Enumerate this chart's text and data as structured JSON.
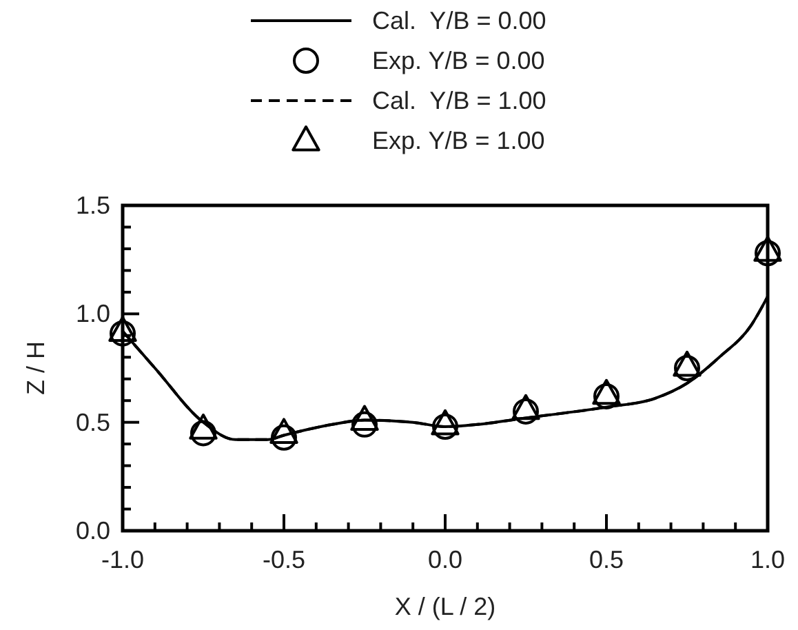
{
  "chart_data": {
    "type": "line",
    "xlabel": "X / (L / 2)",
    "ylabel": "Z / H",
    "legend": "top",
    "grid": false,
    "xlim": [
      -1,
      1
    ],
    "ylim": [
      0,
      1.5
    ],
    "xticks": [
      {
        "value": -1,
        "label": "-1.0"
      },
      {
        "value": -0.9,
        "label": null
      },
      {
        "value": -0.8,
        "label": null
      },
      {
        "value": -0.7,
        "label": null
      },
      {
        "value": -0.6,
        "label": null
      },
      {
        "value": -0.5,
        "label": "-0.5"
      },
      {
        "value": -0.4,
        "label": null
      },
      {
        "value": -0.3,
        "label": null
      },
      {
        "value": -0.2,
        "label": null
      },
      {
        "value": -0.1,
        "label": null
      },
      {
        "value": 0,
        "label": "0.0"
      },
      {
        "value": 0.1,
        "label": null
      },
      {
        "value": 0.2,
        "label": null
      },
      {
        "value": 0.3,
        "label": null
      },
      {
        "value": 0.4,
        "label": null
      },
      {
        "value": 0.5,
        "label": "0.5"
      },
      {
        "value": 0.6,
        "label": null
      },
      {
        "value": 0.7,
        "label": null
      },
      {
        "value": 0.8,
        "label": null
      },
      {
        "value": 0.9,
        "label": null
      },
      {
        "value": 1,
        "label": "1.0"
      }
    ],
    "yticks": [
      {
        "value": 0,
        "label": "0.0"
      },
      {
        "value": 0.1,
        "label": null
      },
      {
        "value": 0.2,
        "label": null
      },
      {
        "value": 0.3,
        "label": null
      },
      {
        "value": 0.4,
        "label": null
      },
      {
        "value": 0.5,
        "label": "0.5"
      },
      {
        "value": 0.6,
        "label": null
      },
      {
        "value": 0.7,
        "label": null
      },
      {
        "value": 0.8,
        "label": null
      },
      {
        "value": 0.9,
        "label": null
      },
      {
        "value": 1,
        "label": "1.0"
      },
      {
        "value": 1.1,
        "label": null
      },
      {
        "value": 1.2,
        "label": null
      },
      {
        "value": 1.3,
        "label": null
      },
      {
        "value": 1.4,
        "label": null
      },
      {
        "value": 1.5,
        "label": "1.5"
      }
    ],
    "series": [
      {
        "name": "Cal.  Y/B = 0.00",
        "line_style": "solid",
        "marker": "none",
        "color": "#000000",
        "x": [
          -1,
          -0.9,
          -0.75,
          -0.65,
          -0.55,
          -0.5,
          -0.35,
          -0.25,
          -0.1,
          0,
          0.1,
          0.25,
          0.5,
          0.65,
          0.75,
          0.85,
          0.95,
          1
        ],
        "values": [
          0.92,
          0.75,
          0.5,
          0.42,
          0.42,
          0.44,
          0.49,
          0.51,
          0.5,
          0.48,
          0.49,
          0.52,
          0.57,
          0.61,
          0.68,
          0.8,
          0.95,
          1.08
        ]
      },
      {
        "name": "Exp. Y/B = 0.00",
        "type": "scatter",
        "marker": "circle",
        "color": "#000000",
        "x": [
          -1,
          -0.75,
          -0.5,
          -0.25,
          0,
          0.25,
          0.5,
          0.75,
          1
        ],
        "values": [
          0.91,
          0.45,
          0.43,
          0.49,
          0.48,
          0.55,
          0.62,
          0.75,
          1.28
        ]
      },
      {
        "name": "Cal.  Y/B = 1.00",
        "line_style": "dashed",
        "marker": "none",
        "color": "#000000",
        "x": [
          -1,
          -0.9,
          -0.75,
          -0.65,
          -0.55,
          -0.5,
          -0.35,
          -0.25,
          -0.1,
          0,
          0.1,
          0.25,
          0.5,
          0.65,
          0.75,
          0.85,
          0.95,
          1
        ],
        "values": [
          0.92,
          0.75,
          0.5,
          0.42,
          0.42,
          0.44,
          0.49,
          0.51,
          0.5,
          0.48,
          0.49,
          0.52,
          0.57,
          0.61,
          0.68,
          0.8,
          0.95,
          1.08
        ]
      },
      {
        "name": "Exp. Y/B = 1.00",
        "type": "scatter",
        "marker": "triangle",
        "color": "#000000",
        "x": [
          -1,
          -0.75,
          -0.5,
          -0.25,
          0,
          0.25,
          0.5,
          0.75,
          1
        ],
        "values": [
          0.92,
          0.47,
          0.45,
          0.51,
          0.49,
          0.56,
          0.63,
          0.76,
          1.29
        ]
      }
    ]
  }
}
